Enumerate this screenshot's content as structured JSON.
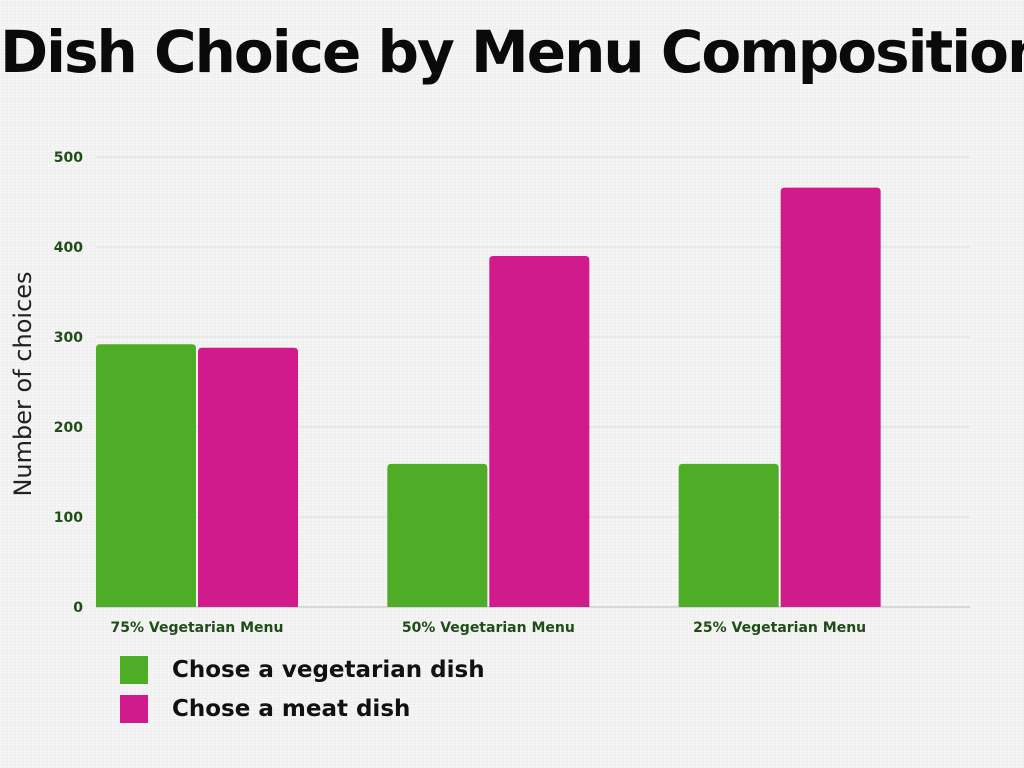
{
  "colors": {
    "vegetarian": "#4fac26",
    "meat": "#d11b8c",
    "tick_text": "#1e4d16",
    "title_text": "#0a0a0a",
    "axis_label_text": "#222222",
    "gridline": "#dddddd"
  },
  "chart_data": {
    "type": "bar",
    "title": "Dish Choice by Menu Composition",
    "xlabel": "",
    "ylabel": "Number of choices",
    "ylim": [
      0,
      500
    ],
    "yticks": [
      0,
      100,
      200,
      300,
      400,
      500
    ],
    "grid": true,
    "legend_position": "bottom-left",
    "categories": [
      "75% Vegetarian Menu",
      "50% Vegetarian Menu",
      "25% Vegetarian Menu"
    ],
    "series": [
      {
        "name": "Chose a vegetarian dish",
        "color_key": "vegetarian",
        "values": [
          292,
          159,
          159
        ]
      },
      {
        "name": "Chose a meat dish",
        "color_key": "meat",
        "values": [
          288,
          390,
          466
        ]
      }
    ]
  }
}
